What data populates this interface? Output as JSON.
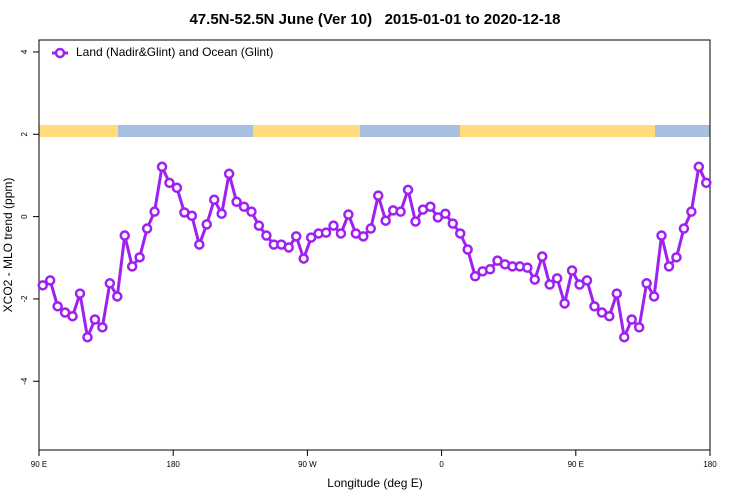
{
  "chart_data": {
    "type": "line",
    "title": "47.5N-52.5N June (Ver 10)   2015-01-01 to 2020-12-18",
    "x_label": "Longitude (deg E)",
    "y_label": "XCO2 - MLO trend (ppm)",
    "xlim": [
      -270,
      180
    ],
    "xticks": [
      {
        "value": -270,
        "label": "90 E"
      },
      {
        "value": -180,
        "label": "180"
      },
      {
        "value": -90,
        "label": "90 W"
      },
      0,
      {
        "value": 90,
        "label": "90 E"
      },
      180
    ],
    "ylim": [
      -5.67,
      4.29
    ],
    "yticks": [
      -4,
      -2,
      0,
      2,
      4
    ],
    "legend": "top-left",
    "x": [
      -267.5,
      -262.5,
      -257.5,
      -252.5,
      -247.5,
      -242.5,
      -237.5,
      -232.5,
      -227.5,
      -222.5,
      -217.5,
      -212.5,
      -207.5,
      -202.5,
      -197.5,
      -192.5,
      -187.5,
      -182.5,
      -177.5,
      -172.5,
      -167.5,
      -162.5,
      -157.5,
      -152.5,
      -147.5,
      -142.5,
      -137.5,
      -132.5,
      -127.5,
      -122.5,
      -117.5,
      -112.5,
      -107.5,
      -102.5,
      -97.5,
      -92.5,
      -87.5,
      -82.5,
      -77.5,
      -72.5,
      -67.5,
      -62.5,
      -57.5,
      -52.5,
      -47.5,
      -42.5,
      -37.5,
      -32.5,
      -27.5,
      -22.5,
      -17.5,
      -12.5,
      -7.5,
      -2.5,
      2.5,
      7.5,
      12.5,
      17.5,
      22.5,
      27.5,
      32.5,
      37.5,
      42.5,
      47.5,
      52.5,
      57.5,
      62.5,
      67.5,
      72.5,
      77.5,
      82.5,
      87.5,
      92.5,
      97.5,
      102.5,
      107.5,
      112.5,
      117.5,
      122.5,
      127.5,
      132.5,
      137.5,
      142.5,
      147.5,
      152.5,
      157.5,
      162.5,
      167.5,
      172.5,
      177.5
    ],
    "series": [
      {
        "name": "Land (Nadir&Glint) and Ocean (Glint)",
        "color": "#a020f0",
        "values": [
          -1.67,
          -1.55,
          -2.18,
          -2.33,
          -2.42,
          -1.87,
          -2.93,
          -2.5,
          -2.69,
          -1.62,
          -1.94,
          -0.46,
          -1.21,
          -0.99,
          -0.29,
          0.12,
          1.21,
          0.82,
          0.7,
          0.1,
          0.02,
          -0.68,
          -0.19,
          0.41,
          0.07,
          1.04,
          0.36,
          0.24,
          0.12,
          -0.22,
          -0.46,
          -0.68,
          -0.68,
          -0.75,
          -0.48,
          -1.02,
          -0.51,
          -0.41,
          -0.39,
          -0.22,
          -0.41,
          0.05,
          -0.41,
          -0.48,
          -0.29,
          0.51,
          -0.1,
          0.15,
          0.12,
          0.65,
          -0.12,
          0.17,
          0.24,
          -0.02,
          0.07,
          -0.17,
          -0.41,
          -0.8,
          -1.45,
          -1.33,
          -1.28,
          -1.07,
          -1.16,
          -1.21,
          -1.21,
          -1.24,
          -1.53,
          -0.97,
          -1.65,
          -1.5,
          -2.11,
          -1.31,
          -1.65,
          -1.55,
          -2.18,
          -2.33,
          -2.42,
          -1.87,
          -2.93,
          -2.5,
          -2.69,
          -1.62,
          -1.94,
          -0.46,
          -1.21,
          -0.99,
          -0.29,
          0.12,
          1.21,
          0.82
        ]
      }
    ]
  }
}
